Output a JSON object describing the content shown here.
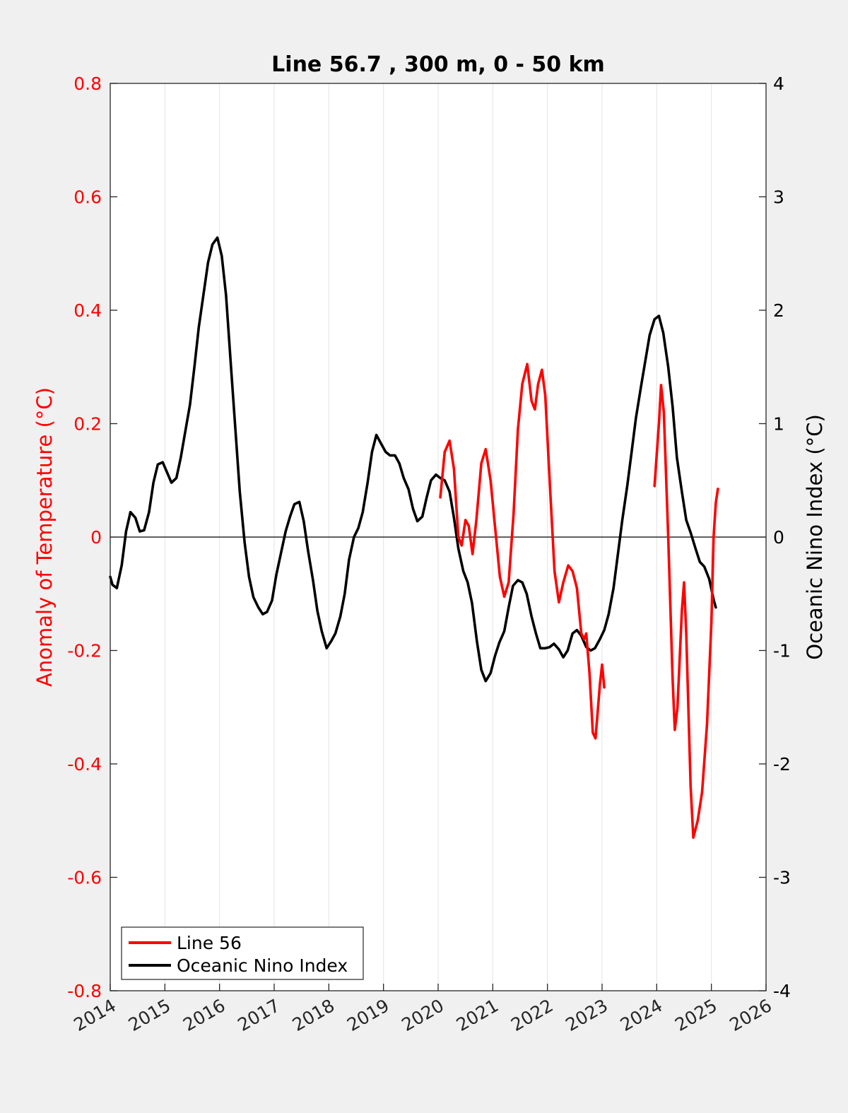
{
  "chart_data": {
    "type": "line",
    "title": "Line 56.7 , 300 m, 0 - 50 km",
    "ylabel": "Anomaly of Temperature (°C)",
    "ylabel_right": "Oceanic Nino Index (°C)",
    "xlim": [
      2014,
      2026
    ],
    "ylim": [
      -0.8,
      0.8
    ],
    "ylim_right": [
      -4,
      4
    ],
    "x_ticks": [
      "2014",
      "2015",
      "2016",
      "2017",
      "2018",
      "2019",
      "2020",
      "2021",
      "2022",
      "2023",
      "2024",
      "2025",
      "2026"
    ],
    "y_ticks": [
      "-0.8",
      "-0.6",
      "-0.4",
      "-0.2",
      "0",
      "0.2",
      "0.4",
      "0.6",
      "0.8"
    ],
    "y_ticks_right": [
      "-4",
      "-3",
      "-2",
      "-1",
      "0",
      "1",
      "2",
      "3",
      "4"
    ],
    "grid": "vertical",
    "legend_position": "bottom-left",
    "colors": {
      "line56": "#ff0000",
      "oni": "#000000"
    },
    "series": [
      {
        "name": "Line 56",
        "axis": "left",
        "segments": [
          [
            [
              2020.04,
              0.07
            ],
            [
              2020.12,
              0.15
            ],
            [
              2020.21,
              0.17
            ],
            [
              2020.29,
              0.12
            ],
            [
              2020.37,
              0.0
            ],
            [
              2020.43,
              -0.015
            ],
            [
              2020.5,
              0.03
            ],
            [
              2020.56,
              0.02
            ],
            [
              2020.63,
              -0.03
            ],
            [
              2020.7,
              0.03
            ],
            [
              2020.79,
              0.13
            ],
            [
              2020.87,
              0.155
            ],
            [
              2020.96,
              0.1
            ],
            [
              2021.04,
              0.02
            ],
            [
              2021.13,
              -0.07
            ],
            [
              2021.21,
              -0.105
            ],
            [
              2021.29,
              -0.08
            ],
            [
              2021.38,
              0.04
            ],
            [
              2021.46,
              0.19
            ],
            [
              2021.54,
              0.27
            ],
            [
              2021.63,
              0.305
            ],
            [
              2021.71,
              0.24
            ],
            [
              2021.77,
              0.225
            ],
            [
              2021.83,
              0.27
            ],
            [
              2021.9,
              0.295
            ],
            [
              2021.96,
              0.25
            ],
            [
              2022.04,
              0.1
            ],
            [
              2022.13,
              -0.06
            ],
            [
              2022.21,
              -0.115
            ],
            [
              2022.29,
              -0.08
            ],
            [
              2022.38,
              -0.05
            ],
            [
              2022.46,
              -0.06
            ],
            [
              2022.54,
              -0.09
            ],
            [
              2022.62,
              -0.17
            ],
            [
              2022.67,
              -0.18
            ],
            [
              2022.71,
              -0.17
            ],
            [
              2022.77,
              -0.24
            ],
            [
              2022.83,
              -0.345
            ],
            [
              2022.88,
              -0.355
            ],
            [
              2022.96,
              -0.26
            ],
            [
              2023.0,
              -0.225
            ],
            [
              2023.04,
              -0.265
            ]
          ],
          [
            [
              2023.96,
              0.09
            ],
            [
              2024.04,
              0.2
            ],
            [
              2024.08,
              0.268
            ],
            [
              2024.13,
              0.22
            ],
            [
              2024.21,
              0.0
            ],
            [
              2024.29,
              -0.25
            ],
            [
              2024.33,
              -0.34
            ],
            [
              2024.38,
              -0.3
            ],
            [
              2024.46,
              -0.13
            ],
            [
              2024.5,
              -0.08
            ],
            [
              2024.54,
              -0.17
            ],
            [
              2024.62,
              -0.44
            ],
            [
              2024.67,
              -0.53
            ],
            [
              2024.75,
              -0.5
            ],
            [
              2024.83,
              -0.45
            ],
            [
              2024.92,
              -0.33
            ],
            [
              2025.0,
              -0.15
            ],
            [
              2025.04,
              0.0
            ],
            [
              2025.08,
              0.06
            ],
            [
              2025.12,
              0.085
            ]
          ]
        ]
      },
      {
        "name": "Oceanic Nino Index",
        "axis": "right",
        "segments": [
          [
            [
              2014.0,
              -0.35
            ],
            [
              2014.04,
              -0.42
            ],
            [
              2014.12,
              -0.45
            ],
            [
              2014.21,
              -0.25
            ],
            [
              2014.29,
              0.05
            ],
            [
              2014.37,
              0.22
            ],
            [
              2014.46,
              0.17
            ],
            [
              2014.54,
              0.05
            ],
            [
              2014.62,
              0.06
            ],
            [
              2014.71,
              0.22
            ],
            [
              2014.79,
              0.48
            ],
            [
              2014.87,
              0.64
            ],
            [
              2014.96,
              0.66
            ],
            [
              2015.04,
              0.57
            ],
            [
              2015.12,
              0.48
            ],
            [
              2015.21,
              0.52
            ],
            [
              2015.29,
              0.7
            ],
            [
              2015.37,
              0.92
            ],
            [
              2015.46,
              1.17
            ],
            [
              2015.54,
              1.5
            ],
            [
              2015.62,
              1.85
            ],
            [
              2015.71,
              2.15
            ],
            [
              2015.79,
              2.42
            ],
            [
              2015.87,
              2.58
            ],
            [
              2015.96,
              2.64
            ],
            [
              2016.04,
              2.48
            ],
            [
              2016.12,
              2.13
            ],
            [
              2016.21,
              1.5
            ],
            [
              2016.29,
              0.95
            ],
            [
              2016.37,
              0.4
            ],
            [
              2016.46,
              -0.05
            ],
            [
              2016.54,
              -0.35
            ],
            [
              2016.62,
              -0.53
            ],
            [
              2016.71,
              -0.62
            ],
            [
              2016.79,
              -0.68
            ],
            [
              2016.87,
              -0.66
            ],
            [
              2016.96,
              -0.56
            ],
            [
              2017.04,
              -0.33
            ],
            [
              2017.12,
              -0.15
            ],
            [
              2017.21,
              0.05
            ],
            [
              2017.29,
              0.18
            ],
            [
              2017.37,
              0.29
            ],
            [
              2017.46,
              0.31
            ],
            [
              2017.54,
              0.14
            ],
            [
              2017.62,
              -0.12
            ],
            [
              2017.71,
              -0.38
            ],
            [
              2017.79,
              -0.65
            ],
            [
              2017.87,
              -0.83
            ],
            [
              2017.96,
              -0.98
            ],
            [
              2018.04,
              -0.92
            ],
            [
              2018.12,
              -0.85
            ],
            [
              2018.21,
              -0.7
            ],
            [
              2018.29,
              -0.5
            ],
            [
              2018.37,
              -0.2
            ],
            [
              2018.46,
              0.0
            ],
            [
              2018.54,
              0.08
            ],
            [
              2018.62,
              0.22
            ],
            [
              2018.71,
              0.48
            ],
            [
              2018.79,
              0.75
            ],
            [
              2018.87,
              0.9
            ],
            [
              2018.96,
              0.82
            ],
            [
              2019.04,
              0.75
            ],
            [
              2019.12,
              0.72
            ],
            [
              2019.21,
              0.72
            ],
            [
              2019.29,
              0.65
            ],
            [
              2019.37,
              0.52
            ],
            [
              2019.46,
              0.42
            ],
            [
              2019.54,
              0.25
            ],
            [
              2019.62,
              0.14
            ],
            [
              2019.71,
              0.18
            ],
            [
              2019.79,
              0.35
            ],
            [
              2019.87,
              0.5
            ],
            [
              2019.96,
              0.55
            ],
            [
              2020.04,
              0.52
            ],
            [
              2020.12,
              0.5
            ],
            [
              2020.21,
              0.4
            ],
            [
              2020.29,
              0.17
            ],
            [
              2020.37,
              -0.1
            ],
            [
              2020.46,
              -0.3
            ],
            [
              2020.54,
              -0.4
            ],
            [
              2020.62,
              -0.58
            ],
            [
              2020.71,
              -0.92
            ],
            [
              2020.79,
              -1.17
            ],
            [
              2020.87,
              -1.27
            ],
            [
              2020.96,
              -1.2
            ],
            [
              2021.04,
              -1.05
            ],
            [
              2021.12,
              -0.93
            ],
            [
              2021.21,
              -0.83
            ],
            [
              2021.29,
              -0.62
            ],
            [
              2021.37,
              -0.43
            ],
            [
              2021.46,
              -0.38
            ],
            [
              2021.54,
              -0.4
            ],
            [
              2021.62,
              -0.5
            ],
            [
              2021.71,
              -0.7
            ],
            [
              2021.79,
              -0.85
            ],
            [
              2021.87,
              -0.98
            ],
            [
              2021.96,
              -0.98
            ],
            [
              2022.04,
              -0.97
            ],
            [
              2022.12,
              -0.94
            ],
            [
              2022.21,
              -0.99
            ],
            [
              2022.29,
              -1.06
            ],
            [
              2022.37,
              -1.0
            ],
            [
              2022.46,
              -0.85
            ],
            [
              2022.54,
              -0.82
            ],
            [
              2022.62,
              -0.87
            ],
            [
              2022.71,
              -0.97
            ],
            [
              2022.79,
              -1.0
            ],
            [
              2022.87,
              -0.98
            ],
            [
              2022.96,
              -0.9
            ],
            [
              2023.04,
              -0.82
            ],
            [
              2023.12,
              -0.68
            ],
            [
              2023.21,
              -0.45
            ],
            [
              2023.29,
              -0.15
            ],
            [
              2023.37,
              0.15
            ],
            [
              2023.46,
              0.45
            ],
            [
              2023.54,
              0.75
            ],
            [
              2023.62,
              1.05
            ],
            [
              2023.71,
              1.32
            ],
            [
              2023.79,
              1.55
            ],
            [
              2023.87,
              1.78
            ],
            [
              2023.96,
              1.92
            ],
            [
              2024.04,
              1.95
            ],
            [
              2024.12,
              1.8
            ],
            [
              2024.21,
              1.5
            ],
            [
              2024.29,
              1.15
            ],
            [
              2024.37,
              0.7
            ],
            [
              2024.46,
              0.4
            ],
            [
              2024.54,
              0.15
            ],
            [
              2024.62,
              0.04
            ],
            [
              2024.71,
              -0.1
            ],
            [
              2024.79,
              -0.22
            ],
            [
              2024.87,
              -0.26
            ],
            [
              2024.96,
              -0.37
            ],
            [
              2025.04,
              -0.55
            ],
            [
              2025.08,
              -0.62
            ]
          ]
        ]
      }
    ]
  }
}
